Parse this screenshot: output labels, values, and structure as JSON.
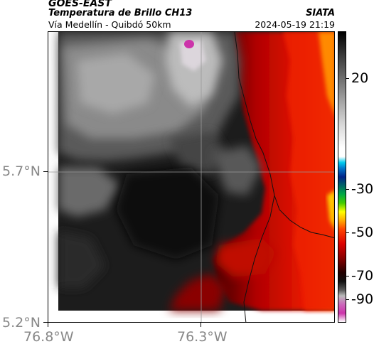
{
  "header": {
    "line1": "GOES-EAST",
    "line2": "Temperatura de Brillo CH13",
    "line3": "Vía Medellín - Quibdó 50km",
    "org": "SIATA",
    "datetime": "2024-05-19 21:19"
  },
  "axes": {
    "y_labels": [
      "5.7°N",
      "5.2°N"
    ],
    "x_labels": [
      "76.8°W",
      "76.3°W"
    ]
  },
  "colorbar": {
    "labels": [
      "20",
      "-30",
      "-50",
      "-70",
      "-90"
    ],
    "colors": {
      "magenta": "#cc33aa",
      "darkred": "#330000",
      "red": "#ee1100",
      "orange": "#ff8800",
      "yellow": "#ffff00",
      "green": "#00cc00",
      "blue": "#003399",
      "cyan": "#00bbdd",
      "white": "#ffffff",
      "black": "#000000"
    }
  },
  "map": {
    "description_colors": [
      "#1a1a1a",
      "#555555",
      "#9a9a9a",
      "#c8c8c8",
      "#7a0000",
      "#d01000",
      "#ff6a00"
    ]
  }
}
